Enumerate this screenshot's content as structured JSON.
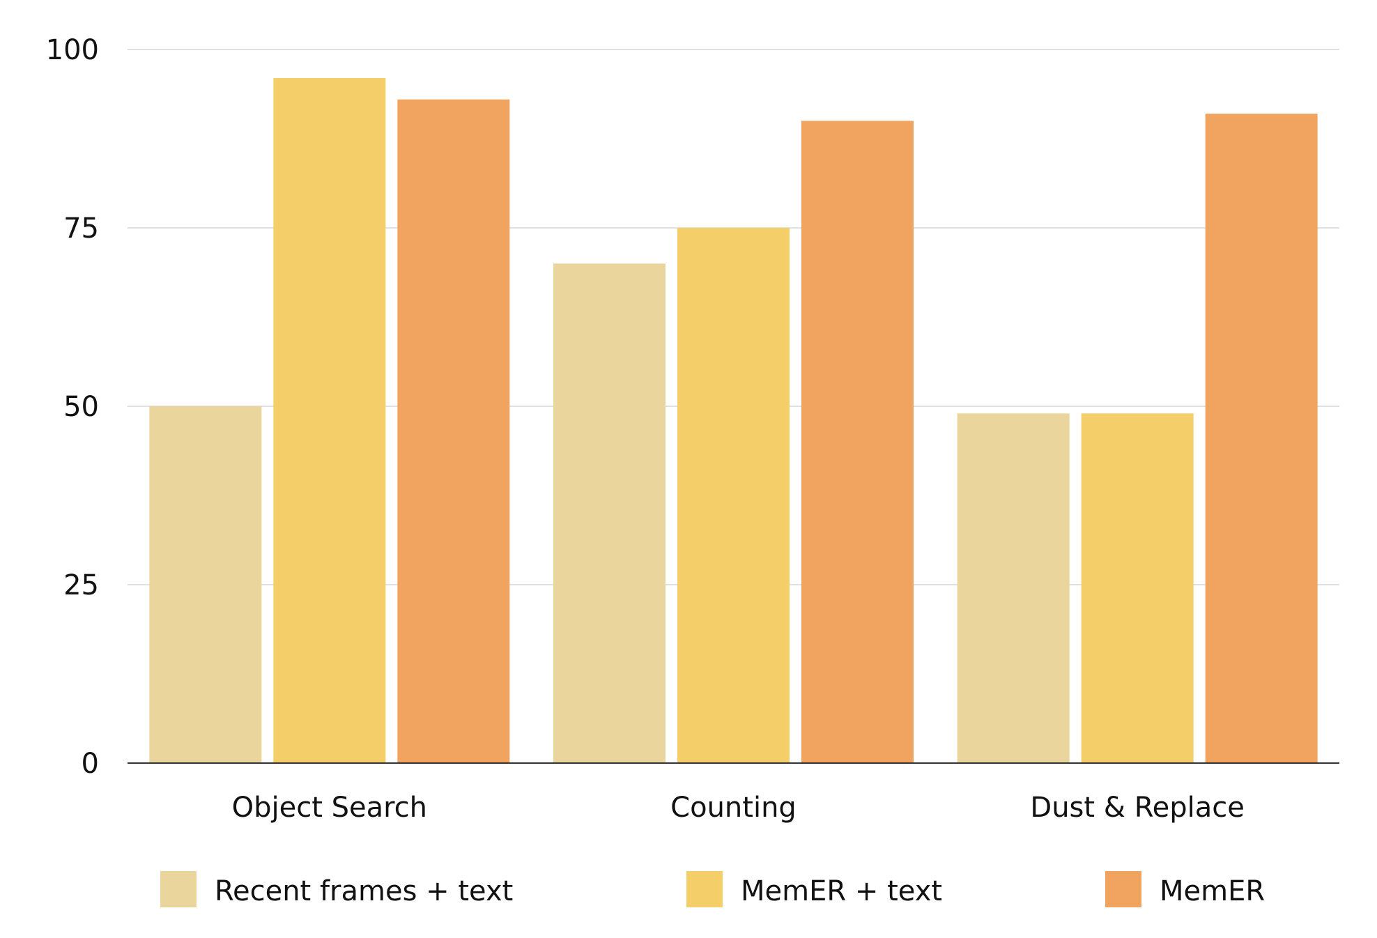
{
  "chart_data": {
    "type": "bar",
    "title": "",
    "xlabel": "",
    "ylabel": "",
    "categories": [
      "Object Search",
      "Counting",
      "Dust & Replace"
    ],
    "series": [
      {
        "name": "Recent frames + text",
        "color": "#EAD59C",
        "values": [
          50,
          70,
          49
        ]
      },
      {
        "name": "MemER + text",
        "color": "#F3CE69",
        "values": [
          96,
          75,
          49
        ]
      },
      {
        "name": "MemER",
        "color": "#F0A460",
        "values": [
          93,
          90,
          91
        ]
      }
    ],
    "ylim": [
      0,
      100
    ],
    "yticks": [
      0,
      25,
      50,
      75,
      100
    ],
    "grid": true,
    "gridline_color": "#D5D5D5",
    "axis_color": "#333333",
    "legend_placement": "bottom"
  }
}
